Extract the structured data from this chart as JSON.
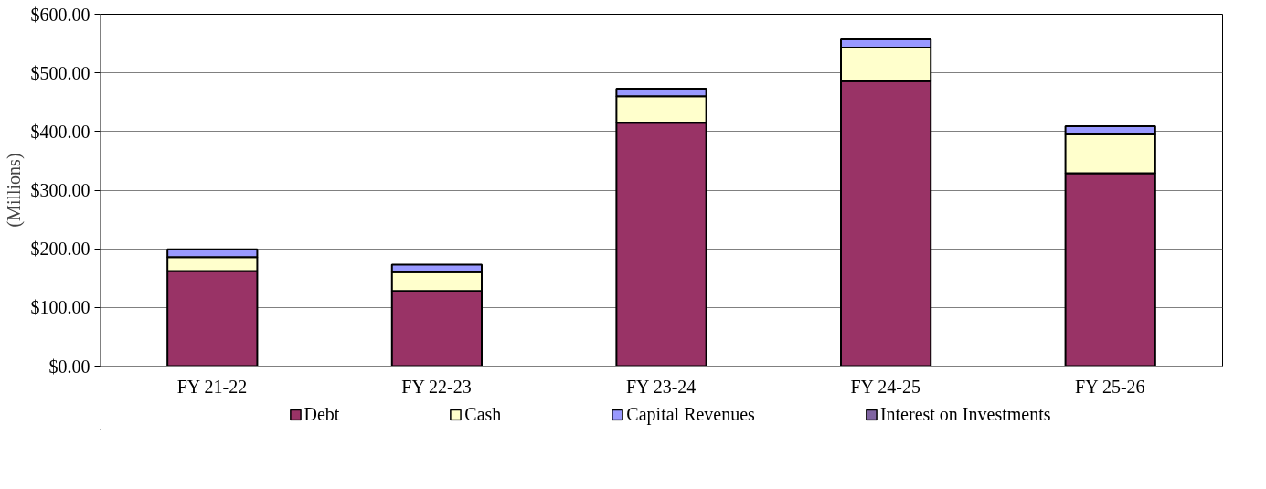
{
  "chart_data": {
    "type": "bar",
    "stacked": true,
    "ylabel": "(Millions)",
    "categories": [
      "FY 21-22",
      "FY 22-23",
      "FY 23-24",
      "FY 24-25",
      "FY 25-26"
    ],
    "series": [
      {
        "name": "Debt",
        "color": "#993366",
        "values": [
          162,
          128,
          415,
          486,
          329
        ]
      },
      {
        "name": "Cash",
        "color": "#ffffcc",
        "values": [
          24,
          32,
          45,
          57,
          66
        ]
      },
      {
        "name": "Capital Revenues",
        "color": "#9999ff",
        "values": [
          13,
          13,
          13,
          14,
          14
        ]
      },
      {
        "name": "Interest on Investments",
        "color": "#8064a2",
        "values": [
          null,
          null,
          null,
          null,
          null
        ]
      }
    ],
    "ylim": [
      0,
      600
    ],
    "yticks": [
      {
        "value": 0,
        "label": "$0.00"
      },
      {
        "value": 100,
        "label": "$100.00"
      },
      {
        "value": 200,
        "label": "$200.00"
      },
      {
        "value": 300,
        "label": "$300.00"
      },
      {
        "value": 400,
        "label": "$400.00"
      },
      {
        "value": 500,
        "label": "$500.00"
      },
      {
        "value": 600,
        "label": "$600.00"
      }
    ],
    "grid": "y",
    "legend": "bottom"
  }
}
